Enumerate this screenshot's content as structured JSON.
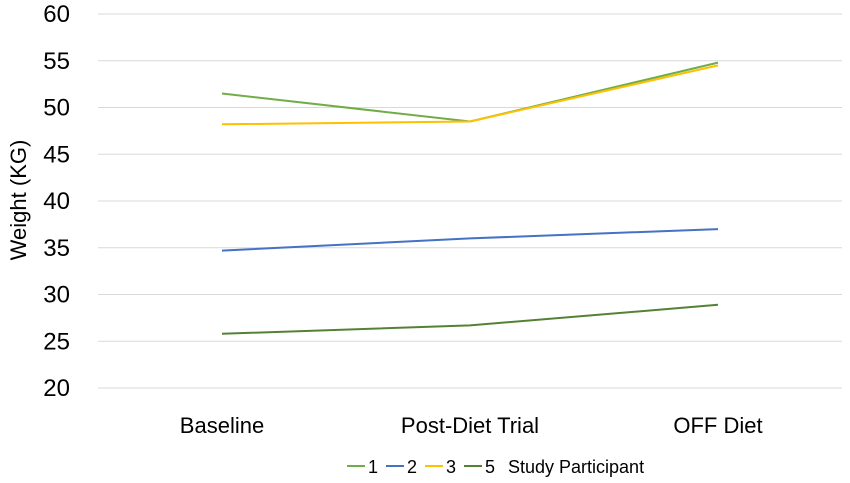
{
  "chart_data": {
    "type": "line",
    "title": "",
    "xlabel": "",
    "ylabel": "Weight (KG)",
    "categories": [
      "Baseline",
      "Post-Diet Trial",
      "OFF Diet"
    ],
    "ylim": [
      20,
      60
    ],
    "yticks": [
      20,
      25,
      30,
      35,
      40,
      45,
      50,
      55,
      60
    ],
    "grid": true,
    "legend_position": "bottom",
    "legend_title": "Study Participant",
    "series": [
      {
        "name": "1",
        "color": "#70ad47",
        "values": [
          51.5,
          48.5,
          54.8
        ]
      },
      {
        "name": "2",
        "color": "#4472c4",
        "values": [
          34.7,
          36.0,
          37.0
        ]
      },
      {
        "name": "3",
        "color": "#ffc000",
        "values": [
          48.2,
          48.5,
          54.5
        ]
      },
      {
        "name": "5",
        "color": "#548235",
        "values": [
          25.8,
          26.7,
          28.9
        ]
      }
    ]
  }
}
